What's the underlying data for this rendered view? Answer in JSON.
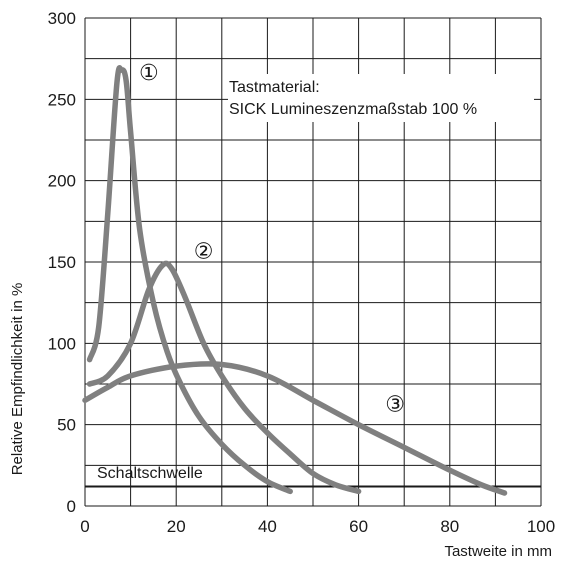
{
  "chart_data": {
    "type": "line",
    "xlabel": "Tastweite in mm",
    "ylabel": "Relative Empfindlichkeit in %",
    "xlim": [
      0,
      100
    ],
    "ylim": [
      0,
      300
    ],
    "x_ticks": [
      0,
      20,
      40,
      60,
      80,
      100
    ],
    "y_ticks": [
      0,
      50,
      100,
      150,
      200,
      250,
      300
    ],
    "grid": true,
    "color": "#808080",
    "annotation": {
      "line1": "Tastmaterial:",
      "line2": "SICK Lumineszenzmaßstab 100 %"
    },
    "threshold": {
      "label": "Schaltschwelle",
      "y": 12
    },
    "series": [
      {
        "marker": "①",
        "x": [
          1,
          3,
          5,
          7,
          8,
          9,
          10,
          12,
          15,
          18,
          21,
          25,
          30,
          35,
          40,
          45
        ],
        "y": [
          90,
          110,
          180,
          260,
          268,
          262,
          230,
          170,
          125,
          95,
          75,
          55,
          38,
          25,
          15,
          9
        ]
      },
      {
        "marker": "②",
        "x": [
          1,
          5,
          10,
          14,
          17,
          19,
          22,
          26,
          30,
          35,
          40,
          45,
          50,
          55,
          60
        ],
        "y": [
          75,
          80,
          100,
          133,
          148,
          146,
          128,
          100,
          80,
          60,
          45,
          32,
          20,
          13,
          9
        ]
      },
      {
        "marker": "③",
        "x": [
          0,
          5,
          10,
          20,
          30,
          40,
          50,
          60,
          70,
          80,
          87,
          92
        ],
        "y": [
          65,
          73,
          80,
          86,
          87,
          80,
          65,
          50,
          36,
          22,
          13,
          8
        ]
      }
    ]
  }
}
